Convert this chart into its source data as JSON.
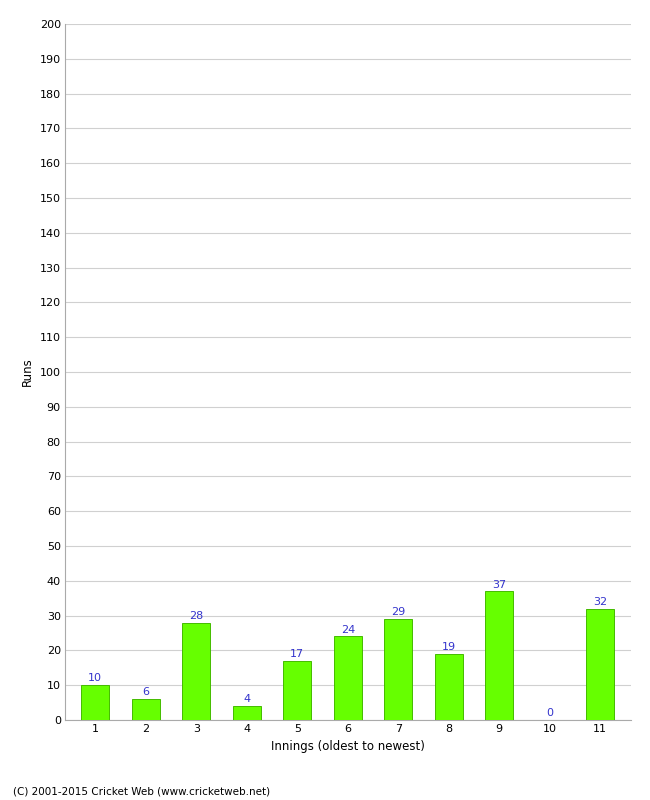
{
  "title": "",
  "xlabel": "Innings (oldest to newest)",
  "ylabel": "Runs",
  "categories": [
    "1",
    "2",
    "3",
    "4",
    "5",
    "6",
    "7",
    "8",
    "9",
    "10",
    "11"
  ],
  "values": [
    10,
    6,
    28,
    4,
    17,
    24,
    29,
    19,
    37,
    0,
    32
  ],
  "bar_color": "#66ff00",
  "bar_edge_color": "#44bb00",
  "label_color": "#3333cc",
  "ylim": [
    0,
    200
  ],
  "ytick_interval": 10,
  "background_color": "#ffffff",
  "grid_color": "#d0d0d0",
  "footer_text": "(C) 2001-2015 Cricket Web (www.cricketweb.net)",
  "label_fontsize": 8,
  "tick_fontsize": 8,
  "footer_fontsize": 7.5,
  "bar_width": 0.55
}
